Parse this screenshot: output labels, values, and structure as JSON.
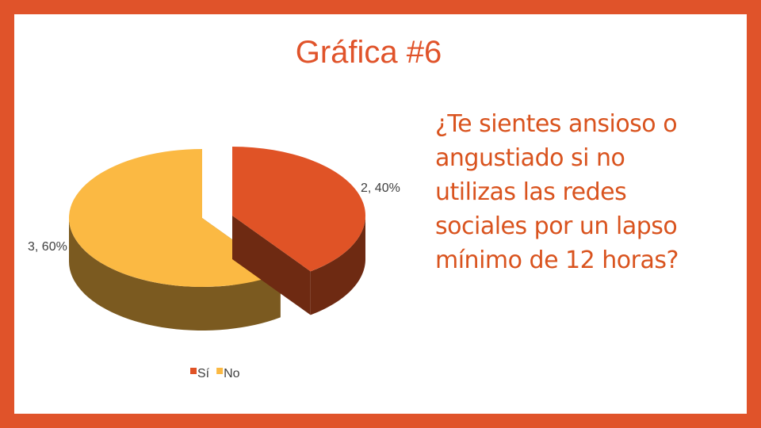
{
  "chart_data": {
    "type": "pie",
    "title": "Gráfica #6",
    "subtitle": "¿Te sientes ansioso o angustiado si no utilizas las redes sociales por un lapso mínimo de 12 horas?",
    "categories": [
      "Sí",
      "No"
    ],
    "values": [
      2,
      3
    ],
    "value_labels": [
      "2, 40%",
      "3, 60%"
    ],
    "colors": [
      "#e05326",
      "#fbb943"
    ],
    "side_colors": [
      "#6e2a12",
      "#7b5a20"
    ],
    "legend": "bottom"
  }
}
